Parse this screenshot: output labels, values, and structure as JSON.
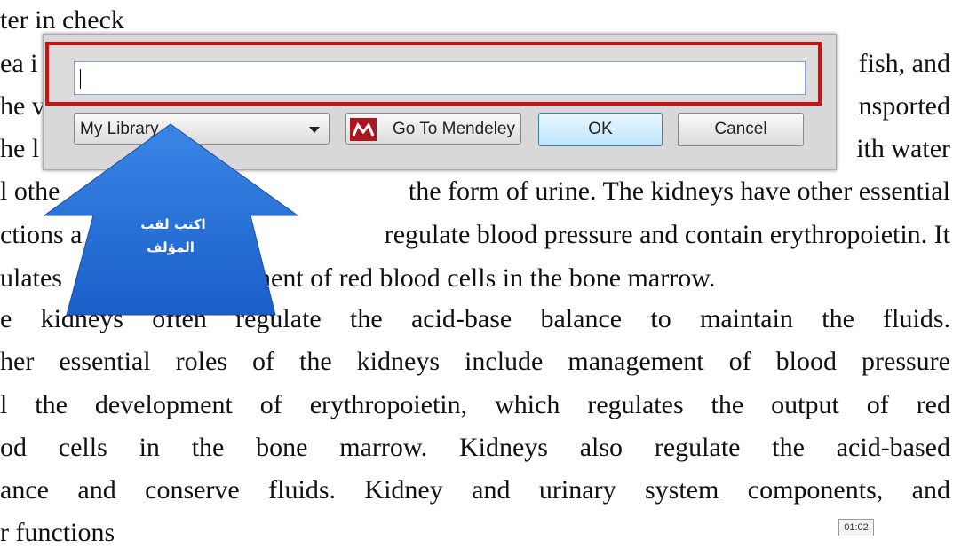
{
  "document": {
    "lines": [
      [
        "ter in check"
      ],
      [
        "ea i",
        "fish, and"
      ],
      [
        "he v",
        "nsported"
      ],
      [
        "he l",
        "ith water"
      ],
      [
        "l othe",
        "the form of urine. The kidneys have other essential"
      ],
      [
        "ctions a",
        "regulate blood pressure and contain erythropoietin. It"
      ],
      [
        "ulates",
        "nent of red blood cells in the bone marrow."
      ],
      [
        "e kidneys often regulate the acid-base balance to maintain the fluids."
      ],
      [
        "her essential roles of the kidneys include management of blood pressure"
      ],
      [
        "l the development of erythropoietin, which regulates the output of red"
      ],
      [
        "od cells in the bone marrow. Kidneys also regulate the acid-based"
      ],
      [
        "ance and conserve fluids. Kidney and urinary system components, and"
      ],
      [
        "r functions"
      ]
    ]
  },
  "dialog": {
    "dropdown": "My Library",
    "mendeley_button": "Go To Mendeley",
    "ok_button": "OK",
    "cancel_button": "Cancel"
  },
  "callout": {
    "lines": [
      "اكتب لقب",
      "المؤلف"
    ]
  },
  "video": {
    "timestamp": "01:02"
  }
}
